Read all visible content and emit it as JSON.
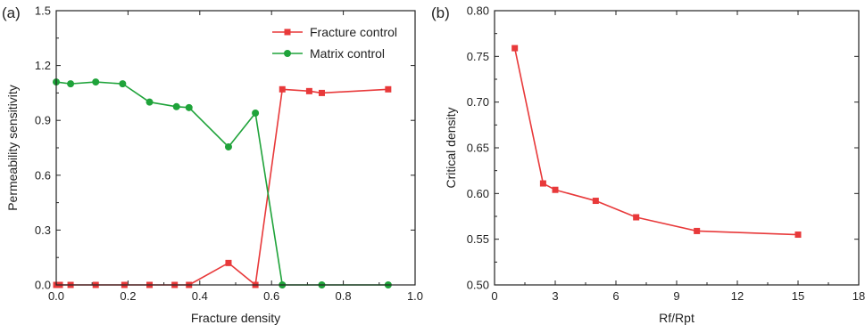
{
  "chart_data": [
    {
      "panel": "(a)",
      "type": "line",
      "xlabel": "Fracture density",
      "ylabel": "Permeability sensitivity",
      "xlim": [
        0.0,
        1.0
      ],
      "ylim": [
        0.0,
        1.5
      ],
      "xticks": [
        "0.0",
        "0.2",
        "0.4",
        "0.6",
        "0.8",
        "1.0"
      ],
      "yticks": [
        "0.0",
        "0.3",
        "0.6",
        "0.9",
        "1.2",
        "1.5"
      ],
      "grid": false,
      "legend_position": "top-right",
      "series": [
        {
          "name": "Fracture control",
          "color": "#e8393a",
          "marker": "square",
          "x": [
            0.0,
            0.01,
            0.04,
            0.11,
            0.19,
            0.26,
            0.33,
            0.37,
            0.48,
            0.555,
            0.63,
            0.705,
            0.74,
            0.925
          ],
          "y": [
            0.0,
            0.0,
            0.0,
            0.0,
            0.0,
            0.0,
            0.0,
            0.0,
            0.12,
            0.0,
            1.07,
            1.06,
            1.05,
            1.07
          ]
        },
        {
          "name": "Matrix control",
          "color": "#1fa33a",
          "marker": "circle",
          "x": [
            0.0,
            0.04,
            0.11,
            0.185,
            0.26,
            0.335,
            0.37,
            0.48,
            0.555,
            0.63,
            0.74,
            0.925
          ],
          "y": [
            1.11,
            1.1,
            1.11,
            1.1,
            1.0,
            0.975,
            0.97,
            0.755,
            0.94,
            0.0,
            0.0,
            0.0
          ]
        }
      ]
    },
    {
      "panel": "(b)",
      "type": "line",
      "xlabel": "Rf/Rpt",
      "ylabel": "Critical density",
      "xlim": [
        0,
        18
      ],
      "ylim": [
        0.5,
        0.8
      ],
      "xticks": [
        "0",
        "3",
        "6",
        "9",
        "12",
        "15",
        "18"
      ],
      "yticks": [
        "0.50",
        "0.55",
        "0.60",
        "0.65",
        "0.70",
        "0.75",
        "0.80"
      ],
      "grid": false,
      "series": [
        {
          "color": "#e8393a",
          "marker": "square",
          "x": [
            1.0,
            2.4,
            3.0,
            5.0,
            7.0,
            10.0,
            15.0
          ],
          "y": [
            0.759,
            0.611,
            0.604,
            0.592,
            0.574,
            0.559,
            0.555
          ]
        }
      ]
    }
  ]
}
